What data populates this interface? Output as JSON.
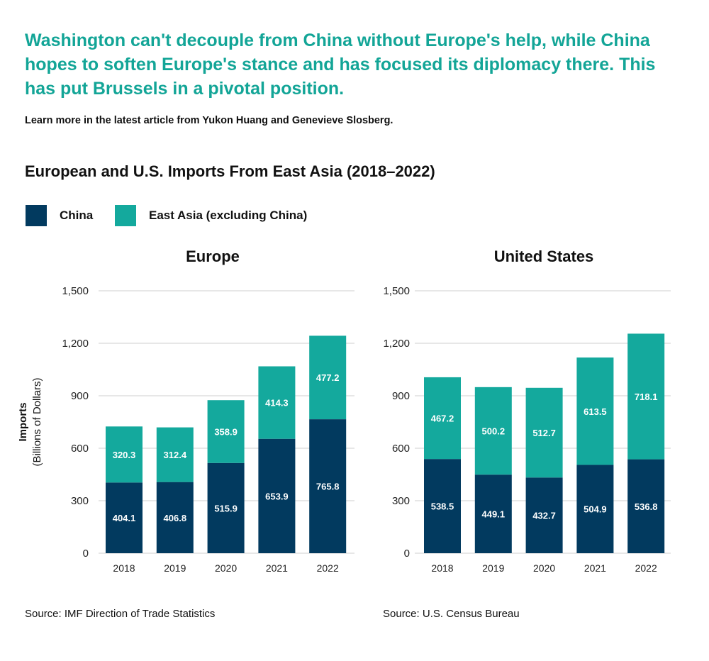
{
  "headline": "Washington can't decouple from China without Europe's help, while China hopes to soften Europe's stance and has focused its diplomacy there. This has put Brussels in a pivotal position.",
  "subtitle": "Learn more in the latest article from Yukon Huang and Genevieve Slosberg.",
  "colors": {
    "china": "#023a5f",
    "east_asia": "#14a99d",
    "headline": "#13a597"
  },
  "chart_data": {
    "type": "bar",
    "stacked": true,
    "title": "European and U.S. Imports From East Asia (2018–2022)",
    "legend": {
      "position": "top-left",
      "entries": [
        "China",
        "East Asia (excluding China)"
      ]
    },
    "ylabel": "Imports",
    "ylabel_sub": "(Billions of Dollars)",
    "ylim": [
      0,
      1500
    ],
    "yticks": [
      "0",
      "300",
      "600",
      "900",
      "1,200",
      "1,500"
    ],
    "ytick_values": [
      0,
      300,
      600,
      900,
      1200,
      1500
    ],
    "grid": true,
    "panels": [
      {
        "title": "Europe",
        "categories": [
          "2018",
          "2019",
          "2020",
          "2021",
          "2022"
        ],
        "series": [
          {
            "name": "China",
            "values": [
              404.1,
              406.8,
              515.9,
              653.9,
              765.8
            ]
          },
          {
            "name": "East Asia (excluding China)",
            "values": [
              320.3,
              312.4,
              358.9,
              414.3,
              477.2
            ]
          }
        ],
        "source": "Source: IMF Direction of Trade Statistics"
      },
      {
        "title": "United States",
        "categories": [
          "2018",
          "2019",
          "2020",
          "2021",
          "2022"
        ],
        "series": [
          {
            "name": "China",
            "values": [
              538.5,
              449.1,
              432.7,
              504.9,
              536.8
            ]
          },
          {
            "name": "East Asia (excluding China)",
            "values": [
              467.2,
              500.2,
              512.7,
              613.5,
              718.1
            ]
          }
        ],
        "source": "Source: U.S. Census Bureau"
      }
    ]
  }
}
